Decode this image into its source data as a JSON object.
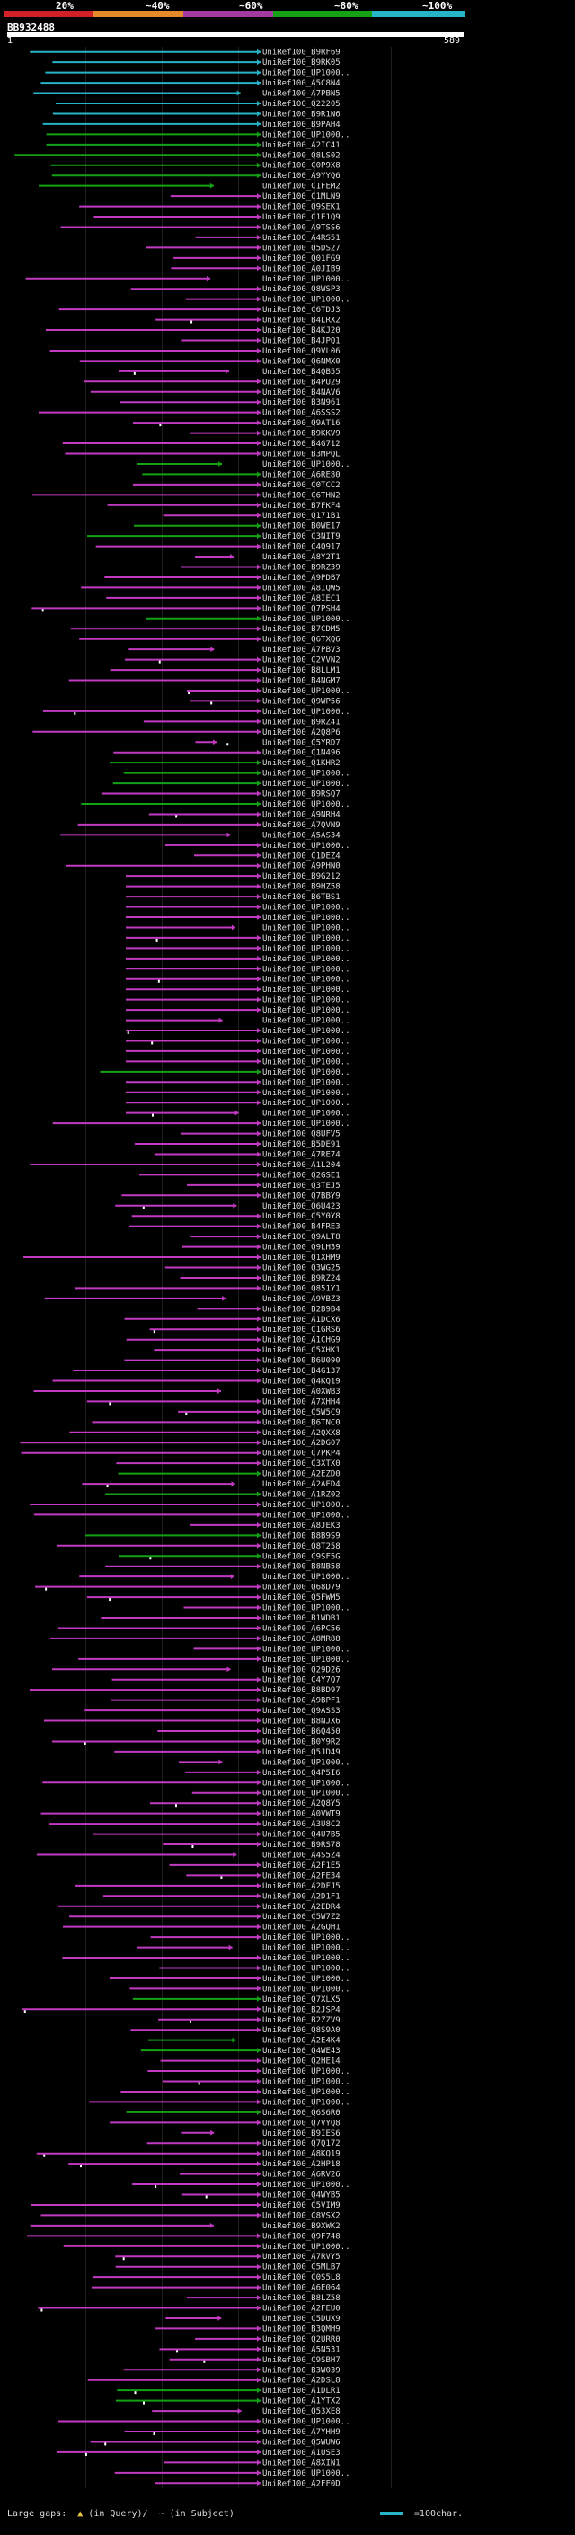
{
  "scale": {
    "labels": [
      "20%",
      "~40%",
      "~60%",
      "~80%",
      "~100%"
    ],
    "segments": [
      {
        "name": "red",
        "color": "#d31f26"
      },
      {
        "name": "orange",
        "color": "#e58a2b"
      },
      {
        "name": "purple",
        "color": "#a23aa2"
      },
      {
        "name": "green",
        "color": "#14a214"
      },
      {
        "name": "cyan",
        "color": "#25b4c8"
      }
    ]
  },
  "query": {
    "id": "BB932488",
    "start": "1",
    "end": "589"
  },
  "legend": {
    "label": "Large gaps:",
    "q_symbol": "▲",
    "q_text": "(in Query)/",
    "s_symbol": "~",
    "s_text": "(in Subject)",
    "scale_text": "=100char."
  },
  "colors": {
    "cyan": "#25b4c8",
    "green": "#14a214",
    "magenta": "#c239c2",
    "white": "#ffffff"
  },
  "hits": [
    "UniRef100_B9RF69",
    "UniRef100_B9RK05",
    "UniRef100_UP1000..",
    "UniRef100_A5C8N4",
    "UniRef100_A7PBN5",
    "UniRef100_Q22205",
    "UniRef100_B9R1N6",
    "UniRef100_B9PAH4",
    "UniRef100_UP1000..",
    "UniRef100_A2IC41",
    "UniRef100_Q8LS02",
    "UniRef100_C0P9X8",
    "UniRef100_A9YYQ6",
    "UniRef100_C1FEM2",
    "UniRef100_C1MLN9",
    "UniRef100_Q9SEK1",
    "UniRef100_C1E1Q9",
    "UniRef100_A9TSS6",
    "UniRef100_A4RS51",
    "UniRef100_Q5DS27",
    "UniRef100_Q01FG9",
    "UniRef100_A0JIB9",
    "UniRef100_UP1000..",
    "UniRef100_Q8WSP3",
    "UniRef100_UP1000..",
    "UniRef100_C6TDJ3",
    "UniRef100_B4LRX2",
    "UniRef100_B4KJ20",
    "UniRef100_B4JPQ1",
    "UniRef100_Q9VL06",
    "UniRef100_Q6NMX0",
    "UniRef100_B4QB55",
    "UniRef100_B4PU29",
    "UniRef100_B4NAV6",
    "UniRef100_B3N961",
    "UniRef100_A6SSS2",
    "UniRef100_Q9AT16",
    "UniRef100_B9KKV9",
    "UniRef100_B4G712",
    "UniRef100_B3MPQL",
    "UniRef100_UP1000..",
    "UniRef100_A6RE80",
    "UniRef100_C0TCC2",
    "UniRef100_C6THN2",
    "UniRef100_B7FKF4",
    "UniRef100_Q171B1",
    "UniRef100_B0WE17",
    "UniRef100_C3NIT9",
    "UniRef100_C4Q917",
    "UniRef100_A8Y2T1",
    "UniRef100_B9RZ39",
    "UniRef100_A9PDB7",
    "UniRef100_A8IQW5",
    "UniRef100_A8IEC1",
    "UniRef100_Q7PSH4",
    "UniRef100_UP1000..",
    "UniRef100_B7CDM5",
    "UniRef100_Q6TXQ6",
    "UniRef100_A7PBV3",
    "UniRef100_C2VVN2",
    "UniRef100_B8LLM1",
    "UniRef100_B4NGM7",
    "UniRef100_UP1000..",
    "UniRef100_Q9WP56",
    "UniRef100_UP1000..",
    "UniRef100_B9RZ41",
    "UniRef100_A2Q8P6",
    "UniRef100_C5YRD7",
    "UniRef100_C1N496",
    "UniRef100_Q1KHR2",
    "UniRef100_UP1000..",
    "UniRef100_UP1000..",
    "UniRef100_B9RSQ7",
    "UniRef100_UP1000..",
    "UniRef100_A9NRH4",
    "UniRef100_A7QVN9",
    "UniRef100_A5AS34",
    "UniRef100_UP1000..",
    "UniRef100_C1DEZ4",
    "UniRef100_A9PHN0",
    "UniRef100_B9G212",
    "UniRef100_B9HZ58",
    "UniRef100_B6TBS1",
    "UniRef100_UP1000..",
    "UniRef100_UP1000..",
    "UniRef100_UP1000..",
    "UniRef100_UP1000..",
    "UniRef100_UP1000..",
    "UniRef100_UP1000..",
    "UniRef100_UP1000..",
    "UniRef100_UP1000..",
    "UniRef100_UP1000..",
    "UniRef100_UP1000..",
    "UniRef100_UP1000..",
    "UniRef100_UP1000..",
    "UniRef100_UP1000..",
    "UniRef100_UP1000..",
    "UniRef100_UP1000..",
    "UniRef100_UP1000..",
    "UniRef100_UP1000..",
    "UniRef100_UP1000..",
    "UniRef100_UP1000..",
    "UniRef100_UP1000..",
    "UniRef100_UP1000..",
    "UniRef100_UP1000..",
    "UniRef100_Q8UFV5",
    "UniRef100_B5DE91",
    "UniRef100_A7RE74",
    "UniRef100_A1L204",
    "UniRef100_Q2GSE1",
    "UniRef100_Q3TEJ5",
    "UniRef100_Q7BBY9",
    "UniRef100_Q6U423",
    "UniRef100_C5Y0Y8",
    "UniRef100_B4FRE3",
    "UniRef100_Q9ALT8",
    "UniRef100_Q9LH39",
    "UniRef100_Q1XHM9",
    "UniRef100_Q3WG25",
    "UniRef100_B9RZ24",
    "UniRef100_Q851Y1",
    "UniRef100_A9VBZ3",
    "UniRef100_B2B9B4",
    "UniRef100_A1DCX6",
    "UniRef100_C1GRS6",
    "UniRef100_A1CHG9",
    "UniRef100_C5XHK1",
    "UniRef100_B6U090",
    "UniRef100_B4G137",
    "UniRef100_Q4KQ19",
    "UniRef100_A0XWB3",
    "UniRef100_A7XHH4",
    "UniRef100_C5W5C9",
    "UniRef100_B6TNC0",
    "UniRef100_A2QXX8",
    "UniRef100_A2DG07",
    "UniRef100_C7PKP4",
    "UniRef100_C3XTX0",
    "UniRef100_A2EZD0",
    "UniRef100_A2AED4",
    "UniRef100_A1RZ02",
    "UniRef100_UP1000..",
    "UniRef100_UP1000..",
    "UniRef100_A8JEK3",
    "UniRef100_B8B9S9",
    "UniRef100_Q8T258",
    "UniRef100_C9SF5G",
    "UniRef100_B8NB58",
    "UniRef100_UP1000..",
    "UniRef100_Q68D79",
    "UniRef100_Q5FWM5",
    "UniRef100_UP1000..",
    "UniRef100_B1WDB1",
    "UniRef100_A6PC56",
    "UniRef100_A8MR88",
    "UniRef100_UP1000..",
    "UniRef100_UP1000..",
    "UniRef100_Q29D26",
    "UniRef100_C4Y7Q7",
    "UniRef100_B8BD97",
    "UniRef100_A9BPF1",
    "UniRef100_Q9ASS3",
    "UniRef100_B8NJX6",
    "UniRef100_B6Q450",
    "UniRef100_B0Y9R2",
    "UniRef100_Q5JD49",
    "UniRef100_UP1000..",
    "UniRef100_Q4P5I6",
    "UniRef100_UP1000..",
    "UniRef100_UP1000..",
    "UniRef100_A2Q8Y5",
    "UniRef100_A0VWT9",
    "UniRef100_A3U8C2",
    "UniRef100_Q4U7B5",
    "UniRef100_B9RS78",
    "UniRef100_A4S5Z4",
    "UniRef100_A2F1E5",
    "UniRef100_A2FE34",
    "UniRef100_A2DFJ5",
    "UniRef100_A2D1F1",
    "UniRef100_A2EDR4",
    "UniRef100_C5W7Z2",
    "UniRef100_A2GQH1",
    "UniRef100_UP1000..",
    "UniRef100_UP1000..",
    "UniRef100_UP1000..",
    "UniRef100_UP1000..",
    "UniRef100_UP1000..",
    "UniRef100_UP1000..",
    "UniRef100_Q7XLX5",
    "UniRef100_B2JSP4",
    "UniRef100_B2ZZV9",
    "UniRef100_Q8S9A0",
    "UniRef100_A2E4K4",
    "UniRef100_Q4WE43",
    "UniRef100_Q2HE14",
    "UniRef100_UP1000..",
    "UniRef100_UP1000..",
    "UniRef100_UP1000..",
    "UniRef100_UP1000..",
    "UniRef100_Q6S6R0",
    "UniRef100_Q7VYQ8",
    "UniRef100_B9IES6",
    "UniRef100_Q7Q172",
    "UniRef100_A8KQ19",
    "UniRef100_A2HP18",
    "UniRef100_A6RV26",
    "UniRef100_UP1000..",
    "UniRef100_Q4WYB5",
    "UniRef100_C5VIM9",
    "UniRef100_C8VSX2",
    "UniRef100_B9XWK2",
    "UniRef100_Q9F748",
    "UniRef100_UP1000..",
    "UniRef100_A7RVY5",
    "UniRef100_C5MLB7",
    "UniRef100_C0S5L8",
    "UniRef100_A6E064",
    "UniRef100_B8LZ58",
    "UniRef100_A2FEU0",
    "UniRef100_C5DUX9",
    "UniRef100_B3QMH9",
    "UniRef100_Q2URR0",
    "UniRef100_A5N531",
    "UniRef100_C9SBH7",
    "UniRef100_B3W039",
    "UniRef100_A2DSL8",
    "UniRef100_A1DLR1",
    "UniRef100_A1YTX2",
    "UniRef100_Q53XE8",
    "UniRef100_UP1000..",
    "UniRef100_A7YHH9",
    "UniRef100_Q5WUW6",
    "UniRef100_A1USE3",
    "UniRef100_A8XIN1",
    "UniRef100_UP1000..",
    "UniRef100_A2FF0D"
  ]
}
